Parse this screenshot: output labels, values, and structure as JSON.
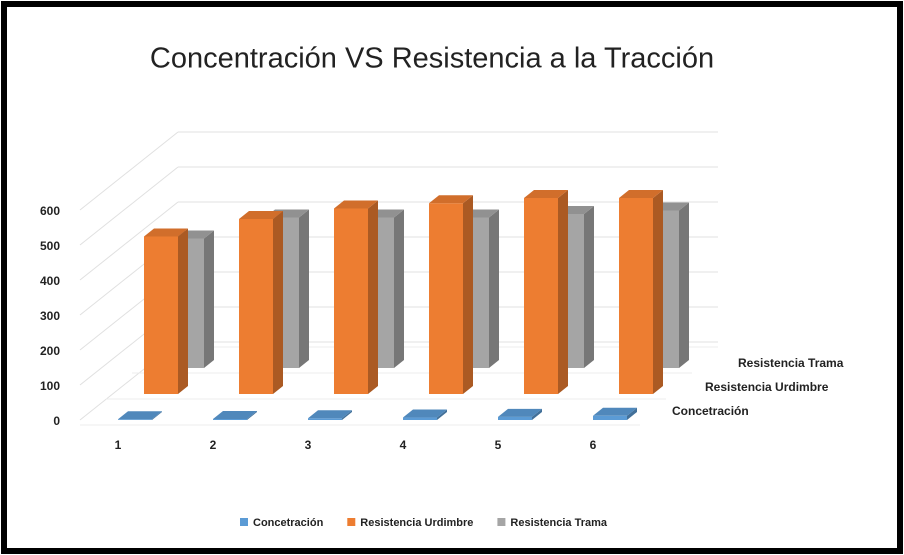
{
  "chart_data": {
    "type": "bar3d",
    "title": "Concentración VS Resistencia a la Tracción",
    "categories": [
      "1",
      "2",
      "3",
      "4",
      "5",
      "6"
    ],
    "series": [
      {
        "name": "Concetración",
        "color": "#5b9bd5",
        "values": [
          2,
          3,
          5,
          7,
          9,
          12
        ]
      },
      {
        "name": "Resistencia Urdimbre",
        "color": "#ed7d31",
        "values": [
          450,
          500,
          530,
          545,
          560,
          560
        ]
      },
      {
        "name": "Resistencia Trama",
        "color": "#a5a5a5",
        "values": [
          370,
          430,
          430,
          430,
          440,
          450
        ]
      }
    ],
    "ylim": [
      0,
      600
    ],
    "yticks": [
      0,
      100,
      200,
      300,
      400,
      500,
      600
    ],
    "grid": true
  }
}
